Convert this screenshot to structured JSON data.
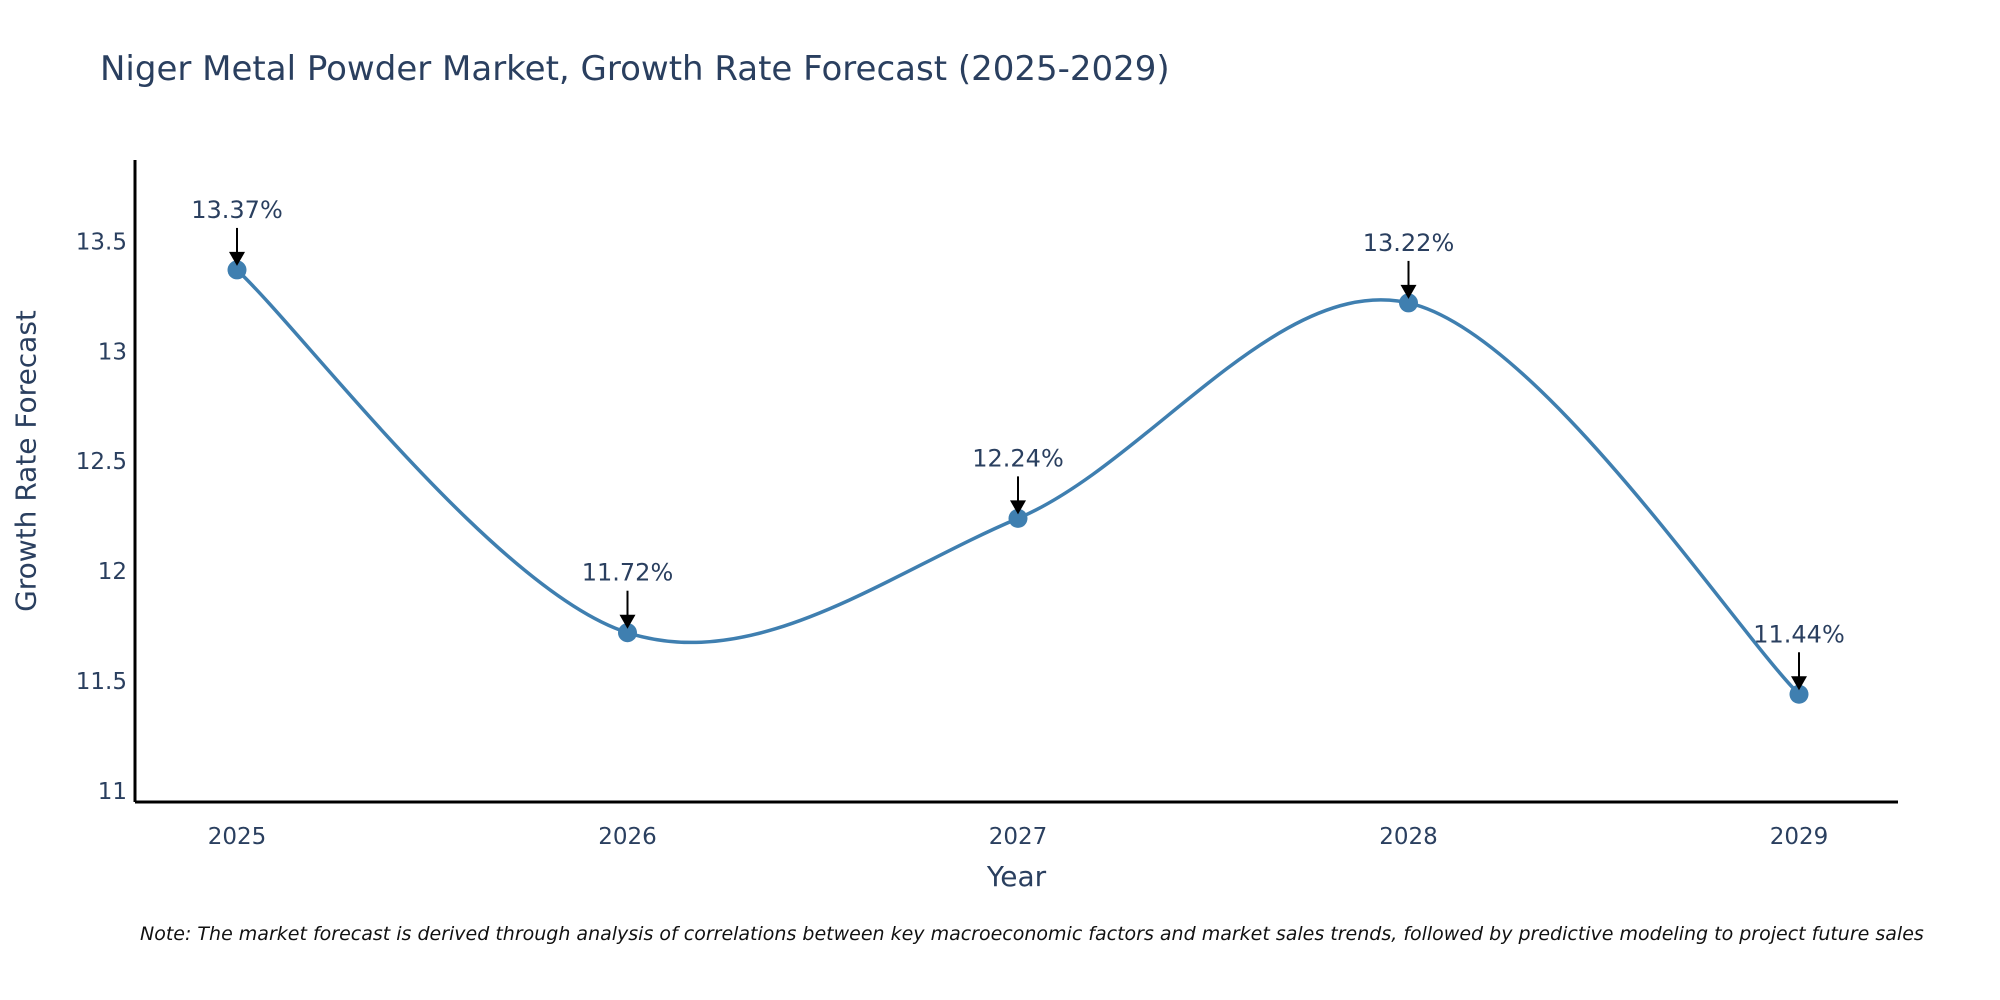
{
  "chart_data": {
    "type": "line",
    "title": "Niger Metal Powder Market, Growth Rate Forecast (2025-2029)",
    "xlabel": "Year",
    "ylabel": "Growth Rate Forecast",
    "categories": [
      "2025",
      "2026",
      "2027",
      "2028",
      "2029"
    ],
    "values": [
      13.37,
      11.72,
      12.24,
      13.22,
      11.44
    ],
    "data_labels": [
      "13.37%",
      "11.72%",
      "12.24%",
      "13.22%",
      "11.44%"
    ],
    "ylim": [
      10.95,
      13.87
    ],
    "yticks": [
      11,
      11.5,
      12,
      12.5,
      13,
      13.5
    ],
    "ytick_labels": [
      "11",
      "11.5",
      "12",
      "12.5",
      "13",
      "13.5"
    ],
    "line_shape": "spline",
    "grid": false,
    "legend": "none",
    "series_color": "#3f7fb0",
    "note": "Note: The market forecast is derived through analysis of correlations between key macroeconomic factors and market sales trends, followed by predictive modeling to project future sales"
  }
}
